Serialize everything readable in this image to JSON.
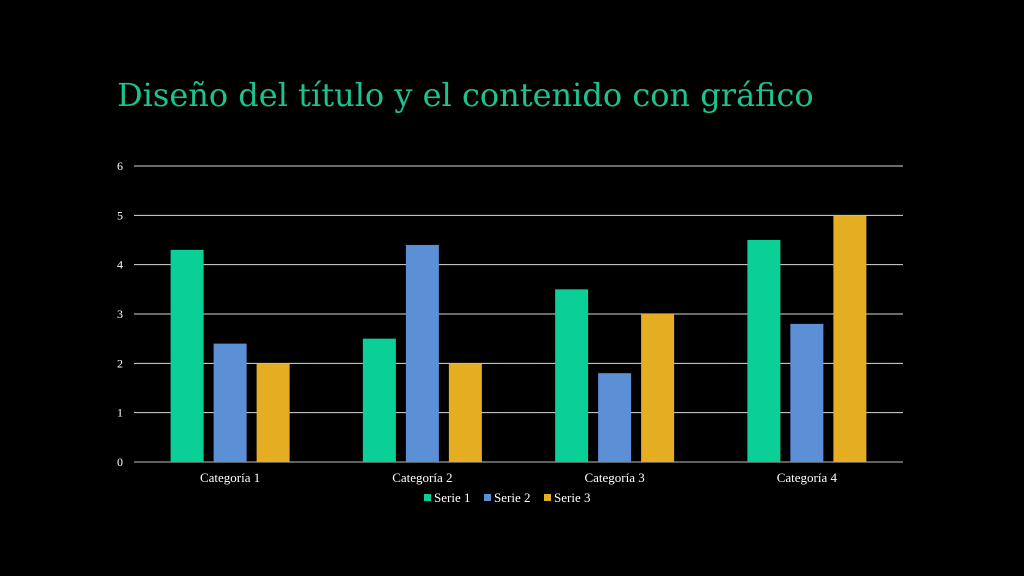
{
  "slide": {
    "title": "Diseño del título y el contenido con gráfico"
  },
  "colors": {
    "background": "#000000",
    "title": "#1fc190",
    "grid": "#d9d9d9",
    "text": "#ffffff"
  },
  "chart_data": {
    "type": "bar",
    "title": "",
    "xlabel": "",
    "ylabel": "",
    "categories": [
      "Categoría 1",
      "Categoría 2",
      "Categoría 3",
      "Categoría 4"
    ],
    "series": [
      {
        "name": "Serie 1",
        "color": "#0acf97",
        "values": [
          4.3,
          2.5,
          3.5,
          4.5
        ]
      },
      {
        "name": "Serie 2",
        "color": "#5b90d6",
        "values": [
          2.4,
          4.4,
          1.8,
          2.8
        ]
      },
      {
        "name": "Serie 3",
        "color": "#e5ae22",
        "values": [
          2,
          2,
          3,
          5
        ]
      }
    ],
    "ylim": [
      0,
      6
    ],
    "yticks": [
      "0",
      "1",
      "2",
      "3",
      "4",
      "5",
      "6"
    ],
    "grid": true,
    "legend_position": "bottom"
  }
}
